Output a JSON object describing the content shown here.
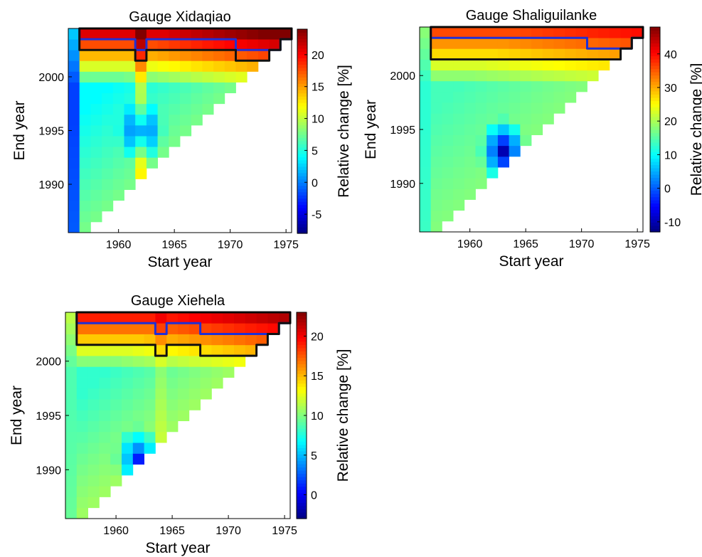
{
  "figure": {
    "panels": 3
  },
  "chart_data": [
    {
      "type": "heatmap",
      "title": "Gauge Xidaqiao",
      "xlabel": "Start year",
      "ylabel": "End year",
      "colorbar_label": "Relative change [%]",
      "xlim": [
        1956,
        1975
      ],
      "ylim": [
        1986,
        2004
      ],
      "xticks": [
        1960,
        1965,
        1970,
        1975
      ],
      "yticks": [
        1990,
        1995,
        2000
      ],
      "clim": [
        -8,
        24
      ],
      "colorbar_ticks": [
        -5,
        0,
        5,
        10,
        15,
        20
      ],
      "colormap": "jet",
      "pattern": {
        "base": 4,
        "diag": 8,
        "top": 21,
        "left_low": -4,
        "low_center": 1962,
        "low_row_end": 1999,
        "low_val": -3,
        "ridge_col": 1962,
        "ridge_val": 13
      },
      "contours": {
        "blue_level": 20,
        "black_level": 17
      }
    },
    {
      "type": "heatmap",
      "title": "Gauge Shaliguilanke",
      "xlabel": "Start year",
      "ylabel": "End year",
      "colorbar_label": "Relative change [%]",
      "xlim": [
        1956,
        1975
      ],
      "ylim": [
        1986,
        2004
      ],
      "xticks": [
        1960,
        1965,
        1970,
        1975
      ],
      "yticks": [
        1990,
        1995,
        2000
      ],
      "clim": [
        -13,
        48
      ],
      "colorbar_ticks": [
        -10,
        0,
        10,
        20,
        30,
        40
      ],
      "colormap": "jet",
      "pattern": {
        "base": 14,
        "diag": 18,
        "top": 36,
        "left_low": 12,
        "low_center": 1963,
        "low_row_end": 1997,
        "low_val": -10,
        "ridge_col": 1963,
        "ridge_val": 0
      },
      "contours": {
        "blue_level": 34,
        "black_level": 27
      }
    },
    {
      "type": "heatmap",
      "title": "Gauge Xiehela",
      "xlabel": "Start year",
      "ylabel": "End year",
      "colorbar_label": "Relative change [%]",
      "xlim": [
        1956,
        1975
      ],
      "ylim": [
        1986,
        2004
      ],
      "xticks": [
        1960,
        1965,
        1970,
        1975
      ],
      "yticks": [
        1990,
        1995,
        2000
      ],
      "clim": [
        -3,
        23
      ],
      "colorbar_ticks": [
        0,
        5,
        10,
        15,
        20
      ],
      "colormap": "jet",
      "pattern": {
        "base": 8,
        "diag": 11,
        "top": 19,
        "left_low": 9,
        "low_center": 1962,
        "low_row_end": 1995,
        "low_val": 1,
        "ridge_col": 1964,
        "ridge_val": 3
      },
      "contours": {
        "blue_level": 18,
        "black_level": 14
      }
    }
  ]
}
